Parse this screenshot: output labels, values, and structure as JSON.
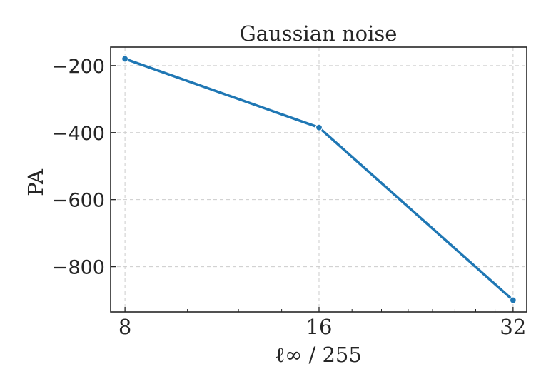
{
  "chart_data": {
    "type": "line",
    "title": "Gaussian noise",
    "xlabel": "ℓ∞ / 255",
    "ylabel": "PA",
    "x_scale": "log2",
    "x": [
      8,
      16,
      32
    ],
    "x_tick_labels": [
      "8",
      "16",
      "32"
    ],
    "xlim": [
      7.6,
      33.6
    ],
    "ylim": [
      -935,
      -145
    ],
    "y_ticks": [
      -200,
      -400,
      -600,
      -800
    ],
    "y_tick_labels": [
      "−200",
      "−400",
      "−600",
      "−800"
    ],
    "grid": true,
    "grid_style": "dashed",
    "series": [
      {
        "values": [
          -180,
          -385,
          -900
        ],
        "color": "#1f77b4"
      }
    ]
  }
}
